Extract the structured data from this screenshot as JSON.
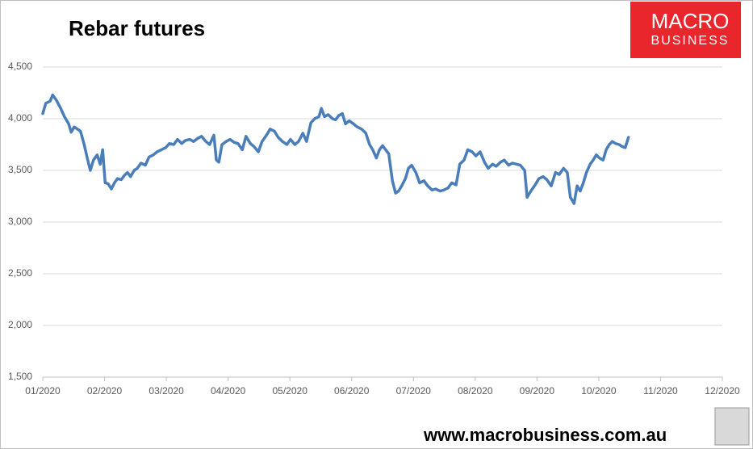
{
  "chart_data": {
    "type": "line",
    "title": "Rebar futures",
    "logo": {
      "line1": "MACRO",
      "line2": "BUSINESS"
    },
    "footer": "www.macrobusiness.com.au",
    "color": "#4a7ebb",
    "ylim": [
      1500,
      4500
    ],
    "yticks": [
      {
        "value": 1500,
        "label": "1,500"
      },
      {
        "value": 2000,
        "label": "2,000"
      },
      {
        "value": 2500,
        "label": "2,500"
      },
      {
        "value": 3000,
        "label": "3,000"
      },
      {
        "value": 3500,
        "label": "3,500"
      },
      {
        "value": 4000,
        "label": "4,000"
      },
      {
        "value": 4500,
        "label": "4,500"
      }
    ],
    "xlim": [
      0,
      11
    ],
    "xticks": [
      {
        "value": 0,
        "label": "01/2020"
      },
      {
        "value": 1,
        "label": "02/2020"
      },
      {
        "value": 2,
        "label": "03/2020"
      },
      {
        "value": 3,
        "label": "04/2020"
      },
      {
        "value": 4,
        "label": "05/2020"
      },
      {
        "value": 5,
        "label": "06/2020"
      },
      {
        "value": 6,
        "label": "07/2020"
      },
      {
        "value": 7,
        "label": "08/2020"
      },
      {
        "value": 8,
        "label": "09/2020"
      },
      {
        "value": 9,
        "label": "10/2020"
      },
      {
        "value": 10,
        "label": "11/2020"
      },
      {
        "value": 11,
        "label": "12/2020"
      }
    ],
    "grid": true,
    "x": [
      0.0,
      0.05,
      0.12,
      0.16,
      0.22,
      0.29,
      0.35,
      0.42,
      0.46,
      0.51,
      0.56,
      0.61,
      0.67,
      0.72,
      0.77,
      0.82,
      0.88,
      0.93,
      0.97,
      1.01,
      1.06,
      1.11,
      1.16,
      1.21,
      1.27,
      1.32,
      1.37,
      1.42,
      1.48,
      1.53,
      1.59,
      1.66,
      1.72,
      1.79,
      1.85,
      1.92,
      1.99,
      2.05,
      2.12,
      2.18,
      2.25,
      2.31,
      2.38,
      2.44,
      2.51,
      2.57,
      2.64,
      2.7,
      2.77,
      2.81,
      2.85,
      2.9,
      2.97,
      3.03,
      3.1,
      3.16,
      3.23,
      3.29,
      3.36,
      3.42,
      3.49,
      3.55,
      3.62,
      3.68,
      3.75,
      3.81,
      3.88,
      3.95,
      4.01,
      4.08,
      4.14,
      4.21,
      4.27,
      4.34,
      4.4,
      4.47,
      4.51,
      4.56,
      4.62,
      4.69,
      4.74,
      4.79,
      4.85,
      4.9,
      4.96,
      5.03,
      5.09,
      5.16,
      5.23,
      5.29,
      5.34,
      5.4,
      5.45,
      5.5,
      5.55,
      5.6,
      5.66,
      5.71,
      5.76,
      5.81,
      5.87,
      5.92,
      5.97,
      6.04,
      6.1,
      6.17,
      6.23,
      6.3,
      6.36,
      6.43,
      6.49,
      6.56,
      6.62,
      6.69,
      6.75,
      6.82,
      6.88,
      6.95,
      7.01,
      7.08,
      7.15,
      7.21,
      7.28,
      7.34,
      7.41,
      7.47,
      7.54,
      7.6,
      7.67,
      7.73,
      7.8,
      7.84,
      7.9,
      7.97,
      8.03,
      8.1,
      8.16,
      8.23,
      8.3,
      8.36,
      8.43,
      8.49,
      8.54,
      8.6,
      8.65,
      8.7,
      8.75,
      8.8,
      8.86,
      8.91,
      8.96,
      9.01,
      9.07,
      9.12,
      9.17,
      9.22,
      9.27,
      9.33,
      9.38,
      9.43,
      9.48
    ],
    "values": [
      4050,
      4150,
      4170,
      4230,
      4180,
      4100,
      4020,
      3950,
      3870,
      3920,
      3900,
      3880,
      3750,
      3620,
      3500,
      3600,
      3650,
      3560,
      3700,
      3380,
      3370,
      3320,
      3380,
      3420,
      3410,
      3450,
      3480,
      3440,
      3500,
      3520,
      3570,
      3550,
      3630,
      3650,
      3680,
      3700,
      3720,
      3760,
      3750,
      3800,
      3760,
      3790,
      3800,
      3780,
      3810,
      3830,
      3780,
      3750,
      3840,
      3600,
      3580,
      3750,
      3780,
      3800,
      3770,
      3760,
      3700,
      3830,
      3760,
      3730,
      3680,
      3780,
      3840,
      3900,
      3880,
      3820,
      3780,
      3750,
      3800,
      3750,
      3780,
      3860,
      3780,
      3960,
      4000,
      4020,
      4100,
      4020,
      4040,
      4000,
      3990,
      4030,
      4050,
      3950,
      3980,
      3950,
      3920,
      3900,
      3860,
      3750,
      3700,
      3620,
      3700,
      3740,
      3700,
      3660,
      3400,
      3280,
      3300,
      3350,
      3420,
      3520,
      3550,
      3480,
      3380,
      3400,
      3350,
      3310,
      3320,
      3300,
      3310,
      3330,
      3380,
      3360,
      3560,
      3600,
      3700,
      3680,
      3640,
      3680,
      3580,
      3520,
      3560,
      3540,
      3580,
      3600,
      3550,
      3570,
      3560,
      3550,
      3500,
      3240,
      3300,
      3360,
      3420,
      3440,
      3410,
      3350,
      3480,
      3460,
      3520,
      3480,
      3240,
      3180,
      3350,
      3300,
      3380,
      3480,
      3560,
      3600,
      3650,
      3620,
      3600,
      3700,
      3750,
      3780,
      3760,
      3750,
      3730,
      3720,
      3820
    ]
  }
}
